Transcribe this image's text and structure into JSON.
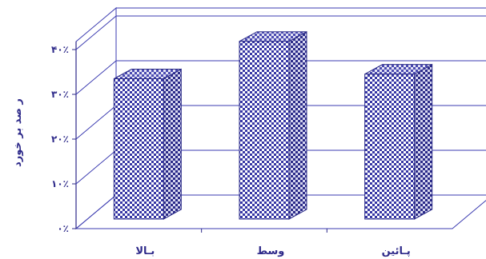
{
  "chart_data": {
    "type": "bar",
    "categories": [
      "بـالا",
      "وسط",
      "پـائين"
    ],
    "values": [
      30,
      38,
      31
    ],
    "ylabel": "ر صد بر خورد",
    "yticks": [
      "۰٪",
      "۱۰٪",
      "۲۰٪",
      "۳۰٪",
      "۴۰٪"
    ],
    "ylim": [
      0,
      40
    ],
    "grid": true,
    "colors": {
      "bar_pattern": "#3333a0",
      "bar_top": "#4a4ab0",
      "bar_side": "#2a2a88",
      "axis": "#2e2a8a",
      "frame": "#3b3bb0"
    }
  }
}
